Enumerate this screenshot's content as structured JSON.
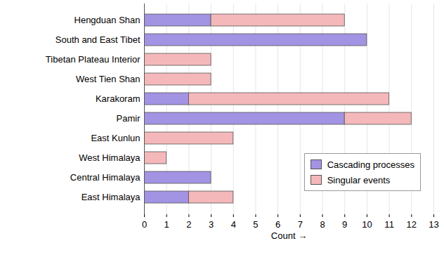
{
  "chart_data": {
    "type": "bar",
    "orientation": "horizontal",
    "stacked": true,
    "categories": [
      "Hengduan Shan",
      "South and East Tibet",
      "Tibetan Plateau Interior",
      "West Tien Shan",
      "Karakoram",
      "Pamir",
      "East Kunlun",
      "West Himalaya",
      "Central Himalaya",
      "East Himalaya"
    ],
    "series": [
      {
        "name": "Cascading processes",
        "color": "#a393e3",
        "values": [
          3,
          10,
          0,
          0,
          2,
          9,
          0,
          0,
          3,
          2
        ]
      },
      {
        "name": "Singular events",
        "color": "#f5b8ba",
        "values": [
          6,
          0,
          3,
          3,
          9,
          3,
          4,
          1,
          0,
          2
        ]
      }
    ],
    "x_label": "Count",
    "xlim": [
      0,
      13
    ],
    "xticks": [
      0,
      1,
      2,
      3,
      4,
      5,
      6,
      7,
      8,
      9,
      10,
      11,
      12,
      13
    ],
    "grid": true,
    "legend": "bottom-right"
  }
}
